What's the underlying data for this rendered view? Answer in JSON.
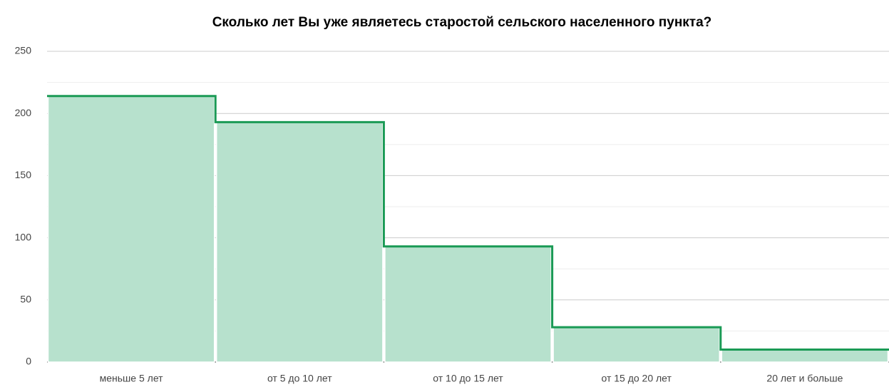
{
  "chart_data": {
    "type": "stepped-area",
    "title": "Сколько лет Вы уже являетесь старостой сельского населенного пункта?",
    "categories": [
      "меньше 5 лет",
      "от 5 до 10 лет",
      "от 10 до 15 лет",
      "от 15 до 20 лет",
      "20 лет и больше"
    ],
    "values": [
      214,
      193,
      93,
      28,
      10
    ],
    "color": "#b7e1cd",
    "line_color": "#1a9a55",
    "ylim": [
      0,
      250
    ],
    "yticks": [
      0,
      50,
      100,
      150,
      200,
      250
    ],
    "minor_yticks": [
      25,
      75,
      125,
      175,
      225
    ],
    "grid": true
  }
}
